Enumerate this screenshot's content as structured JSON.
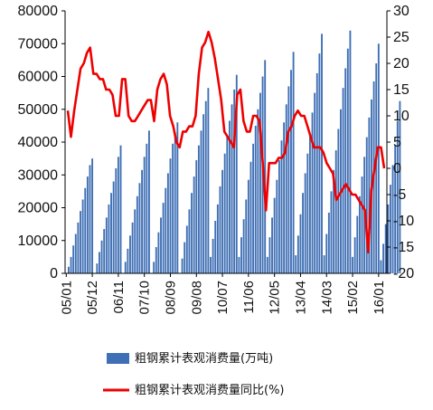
{
  "chart_data": {
    "type": "bar+line",
    "title": "",
    "x_tick_labels": [
      "05/01",
      "05/12",
      "06/11",
      "07/10",
      "08/09",
      "09/08",
      "10/07",
      "11/06",
      "12/05",
      "13/04",
      "14/03",
      "15/02",
      "16/01"
    ],
    "y_left": {
      "ticks": [
        "0",
        "10000",
        "20000",
        "30000",
        "40000",
        "50000",
        "60000",
        "70000",
        "80000"
      ],
      "lim": [
        0,
        80000
      ]
    },
    "y_right": {
      "ticks": [
        "-20",
        "-15",
        "-10",
        "-5",
        "0",
        "5",
        "10",
        "15",
        "20",
        "25",
        "30"
      ],
      "lim": [
        -20,
        30
      ]
    },
    "series": [
      {
        "name": "粗钢累计表观消费量(万吨)",
        "kind": "bar",
        "axis": "left",
        "color": "#3f6fb4",
        "years": [
          {
            "start_month": 1,
            "values": [
              2000,
              5000,
              8500,
              12000,
              15500,
              19000,
              22500,
              26000,
              29500,
              33000,
              35000
            ]
          },
          {
            "start_month": 1,
            "values": [
              3000,
              6500,
              10000,
              13500,
              17000,
              21000,
              24500,
              28000,
              32000,
              35500,
              39000
            ]
          },
          {
            "start_month": 1,
            "values": [
              3500,
              7500,
              11500,
              15500,
              19500,
              23500,
              27500,
              31500,
              35500,
              39500,
              43500
            ]
          },
          {
            "start_month": 1,
            "values": [
              3500,
              8000,
              12500,
              17000,
              21500,
              26000,
              30500,
              35000,
              39500,
              43000,
              46000
            ]
          },
          {
            "start_month": 1,
            "values": [
              4500,
              9500,
              14500,
              19500,
              24500,
              29500,
              34500,
              39000,
              43500,
              48500,
              52500,
              56500
            ]
          },
          {
            "start_month": 1,
            "values": [
              5000,
              10500,
              16000,
              21000,
              26500,
              31500,
              36500,
              41500,
              46500,
              51500,
              56000,
              60500
            ]
          },
          {
            "start_month": 1,
            "values": [
              5000,
              11000,
              16500,
              22500,
              28500,
              34000,
              39500,
              45000,
              50000,
              55000,
              60000,
              65000
            ]
          },
          {
            "start_month": 1,
            "values": [
              5000,
              11000,
              17000,
              23000,
              28500,
              34500,
              40500,
              46000,
              51500,
              57000,
              62000,
              67500
            ]
          },
          {
            "start_month": 1,
            "values": [
              5500,
              11500,
              18000,
              24500,
              30500,
              36500,
              42500,
              49000,
              55000,
              61000,
              67000,
              73000
            ]
          },
          {
            "start_month": 1,
            "values": [
              5500,
              12000,
              18500,
              25000,
              31500,
              37500,
              44000,
              50000,
              56500,
              62500,
              68500,
              74000
            ]
          },
          {
            "start_month": 1,
            "values": [
              5000,
              11000,
              17500,
              23500,
              29500,
              35500,
              41500,
              47500,
              53000,
              58500,
              64000,
              70000
            ]
          },
          {
            "start_month": 1,
            "values": [
              4000,
              9000,
              15000,
              21000,
              27000,
              33000,
              39000,
              46500,
              52500
            ]
          }
        ]
      },
      {
        "name": "粗钢累计表观消费量同比(%)",
        "kind": "line",
        "axis": "right",
        "color": "#ee0000",
        "values": [
          11,
          6,
          11,
          15,
          19,
          20,
          22,
          23,
          18,
          18,
          17,
          17,
          15,
          15,
          14,
          10,
          10,
          17,
          17,
          10,
          9,
          9,
          10,
          11,
          12,
          13,
          13,
          9,
          15,
          17,
          18,
          16,
          10,
          8,
          5,
          4,
          7,
          7,
          8,
          8,
          10,
          18,
          23,
          24,
          26,
          24,
          21,
          17,
          13,
          7,
          6,
          5,
          4,
          14,
          15,
          9,
          7,
          7,
          10,
          10,
          9,
          1,
          -8,
          1,
          1,
          1,
          2,
          2,
          3,
          7,
          8,
          10,
          11,
          10,
          10,
          8,
          6,
          4,
          4,
          4,
          3,
          1,
          0,
          -1,
          -6,
          -5,
          -4,
          -3,
          -4,
          -5,
          -5,
          -6,
          -7,
          -8,
          -16,
          -4,
          0,
          4,
          4,
          0
        ]
      }
    ]
  }
}
